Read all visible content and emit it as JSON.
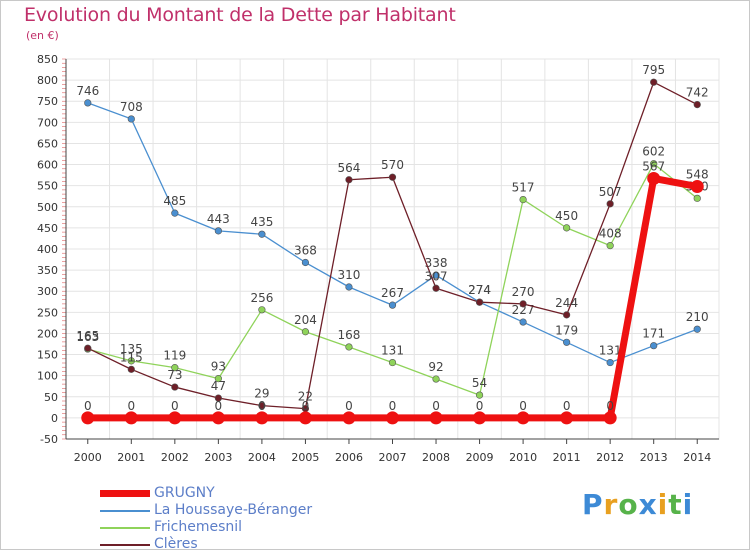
{
  "header": {
    "title": "Evolution du Montant de la Dette par Habitant",
    "unit": "(en €)"
  },
  "logo": {
    "letters": [
      "P",
      "r",
      "o",
      "x",
      "i",
      "t",
      "i"
    ],
    "colors": [
      "#3d8ad6",
      "#e8a020",
      "#57b34a",
      "#3d8ad6",
      "#e8a020",
      "#57b34a",
      "#3d8ad6"
    ]
  },
  "chart_data": {
    "type": "line",
    "x": [
      "2000",
      "2001",
      "2002",
      "2003",
      "2004",
      "2005",
      "2006",
      "2007",
      "2008",
      "2009",
      "2010",
      "2011",
      "2012",
      "2013",
      "2014"
    ],
    "ylim": [
      -50,
      850
    ],
    "yticks": [
      -50,
      0,
      50,
      100,
      150,
      200,
      250,
      300,
      350,
      400,
      450,
      500,
      550,
      600,
      650,
      700,
      750,
      800,
      850
    ],
    "grid": true,
    "legend_position": "bottom-left",
    "series": [
      {
        "name": "La Houssaye-Béranger",
        "color": "#4a8fd0",
        "width": 1.3,
        "values": [
          746,
          708,
          485,
          443,
          435,
          368,
          310,
          267,
          338,
          274,
          227,
          179,
          131,
          171,
          210
        ]
      },
      {
        "name": "Frichemesnil",
        "color": "#8fd35a",
        "width": 1.3,
        "values": [
          163,
          135,
          119,
          93,
          256,
          204,
          168,
          131,
          92,
          54,
          517,
          450,
          408,
          602,
          520
        ]
      },
      {
        "name": "Clères",
        "color": "#6e1f28",
        "width": 1.3,
        "values": [
          165,
          115,
          73,
          47,
          29,
          22,
          564,
          570,
          307,
          274,
          270,
          244,
          507,
          795,
          742
        ]
      },
      {
        "name": "GRUGNY",
        "color": "#ee1111",
        "width": 7,
        "values": [
          0,
          0,
          0,
          0,
          0,
          0,
          0,
          0,
          0,
          0,
          0,
          0,
          0,
          567,
          548
        ]
      }
    ]
  }
}
